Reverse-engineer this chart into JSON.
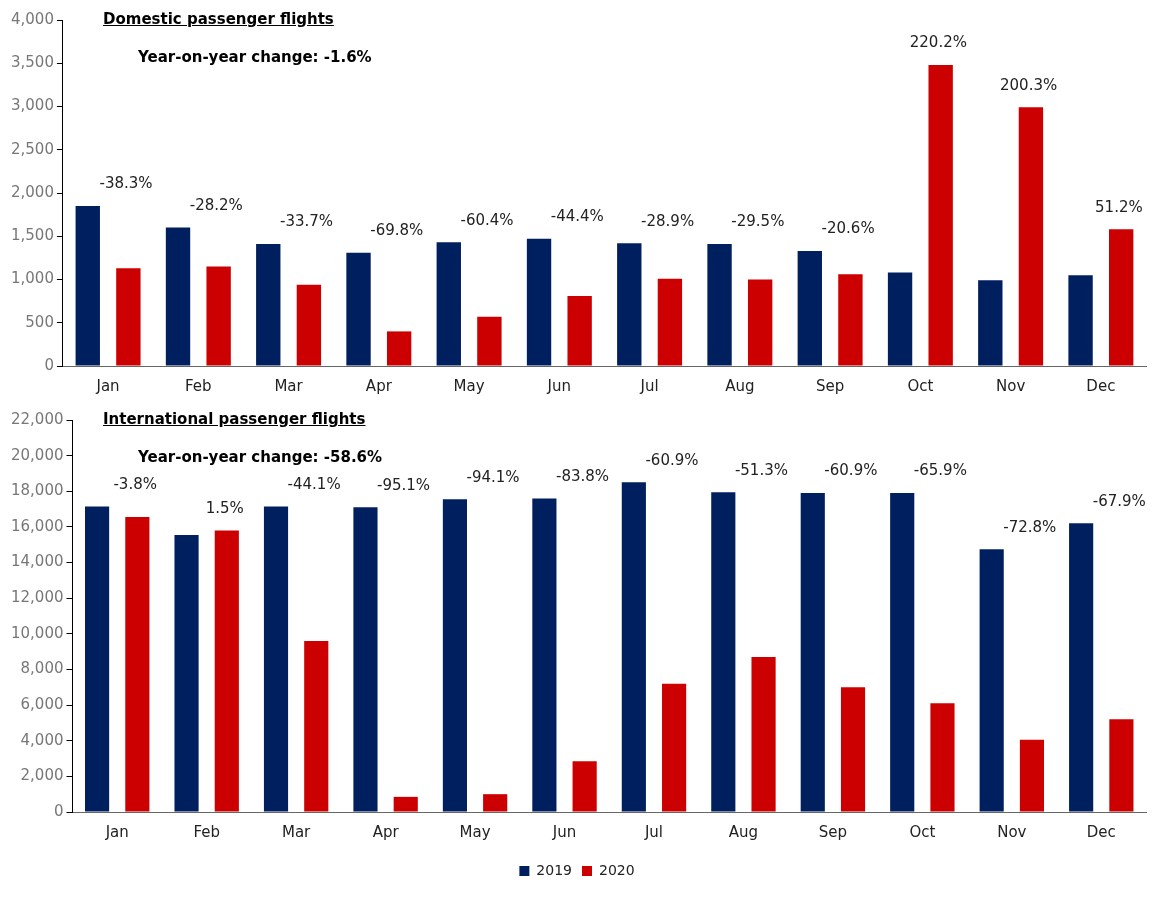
{
  "chart_data": [
    {
      "type": "bar",
      "title": "Domestic passenger flights",
      "categories": [
        "Jan",
        "Feb",
        "Mar",
        "Apr",
        "May",
        "Jun",
        "Jul",
        "Aug",
        "Sep",
        "Oct",
        "Nov",
        "Dec"
      ],
      "series": [
        {
          "color": "#001f5f",
          "values": [
            1850,
            1600,
            1410,
            1310,
            1430,
            1470,
            1420,
            1410,
            1330,
            1080,
            990,
            1050
          ]
        },
        {
          "color": "#cc0000",
          "values": [
            1130,
            1150,
            940,
            400,
            570,
            810,
            1010,
            1000,
            1060,
            3480,
            2990,
            1580
          ]
        }
      ],
      "ylim": [
        0,
        4000
      ],
      "yticks": [
        {
          "value": 0,
          "label": "0"
        },
        {
          "value": 500,
          "label": "500"
        },
        {
          "value": 1000,
          "label": "1,000"
        },
        {
          "value": 1500,
          "label": "1,500"
        },
        {
          "value": 2000,
          "label": "2,000"
        },
        {
          "value": 2500,
          "label": "2,500"
        },
        {
          "value": 3000,
          "label": "3,000"
        },
        {
          "value": 3500,
          "label": "3,500"
        },
        {
          "value": 4000,
          "label": "4,000"
        }
      ],
      "grid": false,
      "legend": false,
      "annotations": [
        "Year-on-year change: -1.6%",
        "-38.3%",
        "-28.2%",
        "-33.7%",
        "-69.8%",
        "-60.4%",
        "-44.4%",
        "-28.9%",
        "-29.5%",
        "-20.6%",
        "220.2%",
        "200.3%",
        "51.2%"
      ]
    },
    {
      "type": "bar",
      "title": "International passenger flights",
      "categories": [
        "Jan",
        "Feb",
        "Mar",
        "Apr",
        "May",
        "Jun",
        "Jul",
        "Aug",
        "Sep",
        "Oct",
        "Nov",
        "Dec"
      ],
      "series": [
        {
          "name": "2019",
          "color": "#001f5f",
          "values": [
            17150,
            15550,
            17150,
            17100,
            17550,
            17600,
            18500,
            17950,
            17900,
            17900,
            14750,
            16200
          ]
        },
        {
          "name": "2020",
          "color": "#cc0000",
          "values": [
            16550,
            15800,
            9600,
            850,
            1000,
            2850,
            7200,
            8700,
            7000,
            6100,
            4050,
            5200
          ]
        }
      ],
      "ylim": [
        0,
        22000
      ],
      "yticks": [
        {
          "value": 0,
          "label": "0"
        },
        {
          "value": 2000,
          "label": "2,000"
        },
        {
          "value": 4000,
          "label": "4,000"
        },
        {
          "value": 6000,
          "label": "6,000"
        },
        {
          "value": 8000,
          "label": "8,000"
        },
        {
          "value": 10000,
          "label": "10,000"
        },
        {
          "value": 12000,
          "label": "12,000"
        },
        {
          "value": 14000,
          "label": "14,000"
        },
        {
          "value": 16000,
          "label": "16,000"
        },
        {
          "value": 18000,
          "label": "18,000"
        },
        {
          "value": 20000,
          "label": "20,000"
        },
        {
          "value": 22000,
          "label": "22,000"
        }
      ],
      "grid": false,
      "legend": "bottom",
      "annotations": [
        "Year-on-year change: -58.6%",
        "-3.8%",
        "1.5%",
        "-44.1%",
        "-95.1%",
        "-94.1%",
        "-83.8%",
        "-60.9%",
        "-51.3%",
        "-60.9%",
        "-65.9%",
        "-72.8%",
        "-67.9%"
      ]
    }
  ]
}
